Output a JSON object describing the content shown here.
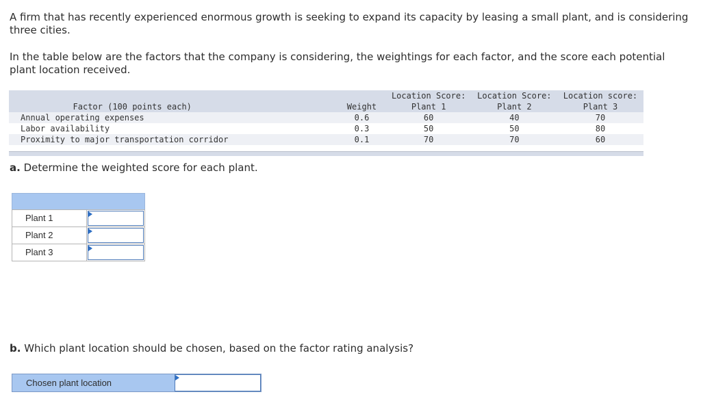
{
  "intro": {
    "paragraph1": "A firm that has recently experienced enormous growth is seeking to expand its capacity by leasing a small plant, and is considering three cities.",
    "paragraph2": "In the table below are the factors that the company is considering, the weightings for each factor, and the score each potential plant location received."
  },
  "factor_table": {
    "headers": {
      "factor": "Factor (100 points each)",
      "weight": "Weight",
      "plant1_line1": "Location Score:",
      "plant1_line2": "Plant 1",
      "plant2_line1": "Location Score:",
      "plant2_line2": "Plant 2",
      "plant3_line1": "Location score:",
      "plant3_line2": "Plant 3"
    },
    "rows": [
      {
        "factor": "Annual operating expenses",
        "weight": "0.6",
        "plant1": "60",
        "plant2": "40",
        "plant3": "70"
      },
      {
        "factor": "Labor availability",
        "weight": "0.3",
        "plant1": "50",
        "plant2": "50",
        "plant3": "80"
      },
      {
        "factor": "Proximity to major transportation corridor",
        "weight": "0.1",
        "plant1": "70",
        "plant2": "70",
        "plant3": "60"
      }
    ]
  },
  "part_a": {
    "letter": "a.",
    "question": "Determine the weighted score for each plant.",
    "rows": [
      {
        "label": "Plant 1",
        "value": ""
      },
      {
        "label": "Plant 2",
        "value": ""
      },
      {
        "label": "Plant 3",
        "value": ""
      }
    ]
  },
  "part_b": {
    "letter": "b.",
    "question": "Which plant location should be chosen, based on the factor rating analysis?",
    "answer_label": "Chosen plant location",
    "answer_value": ""
  }
}
